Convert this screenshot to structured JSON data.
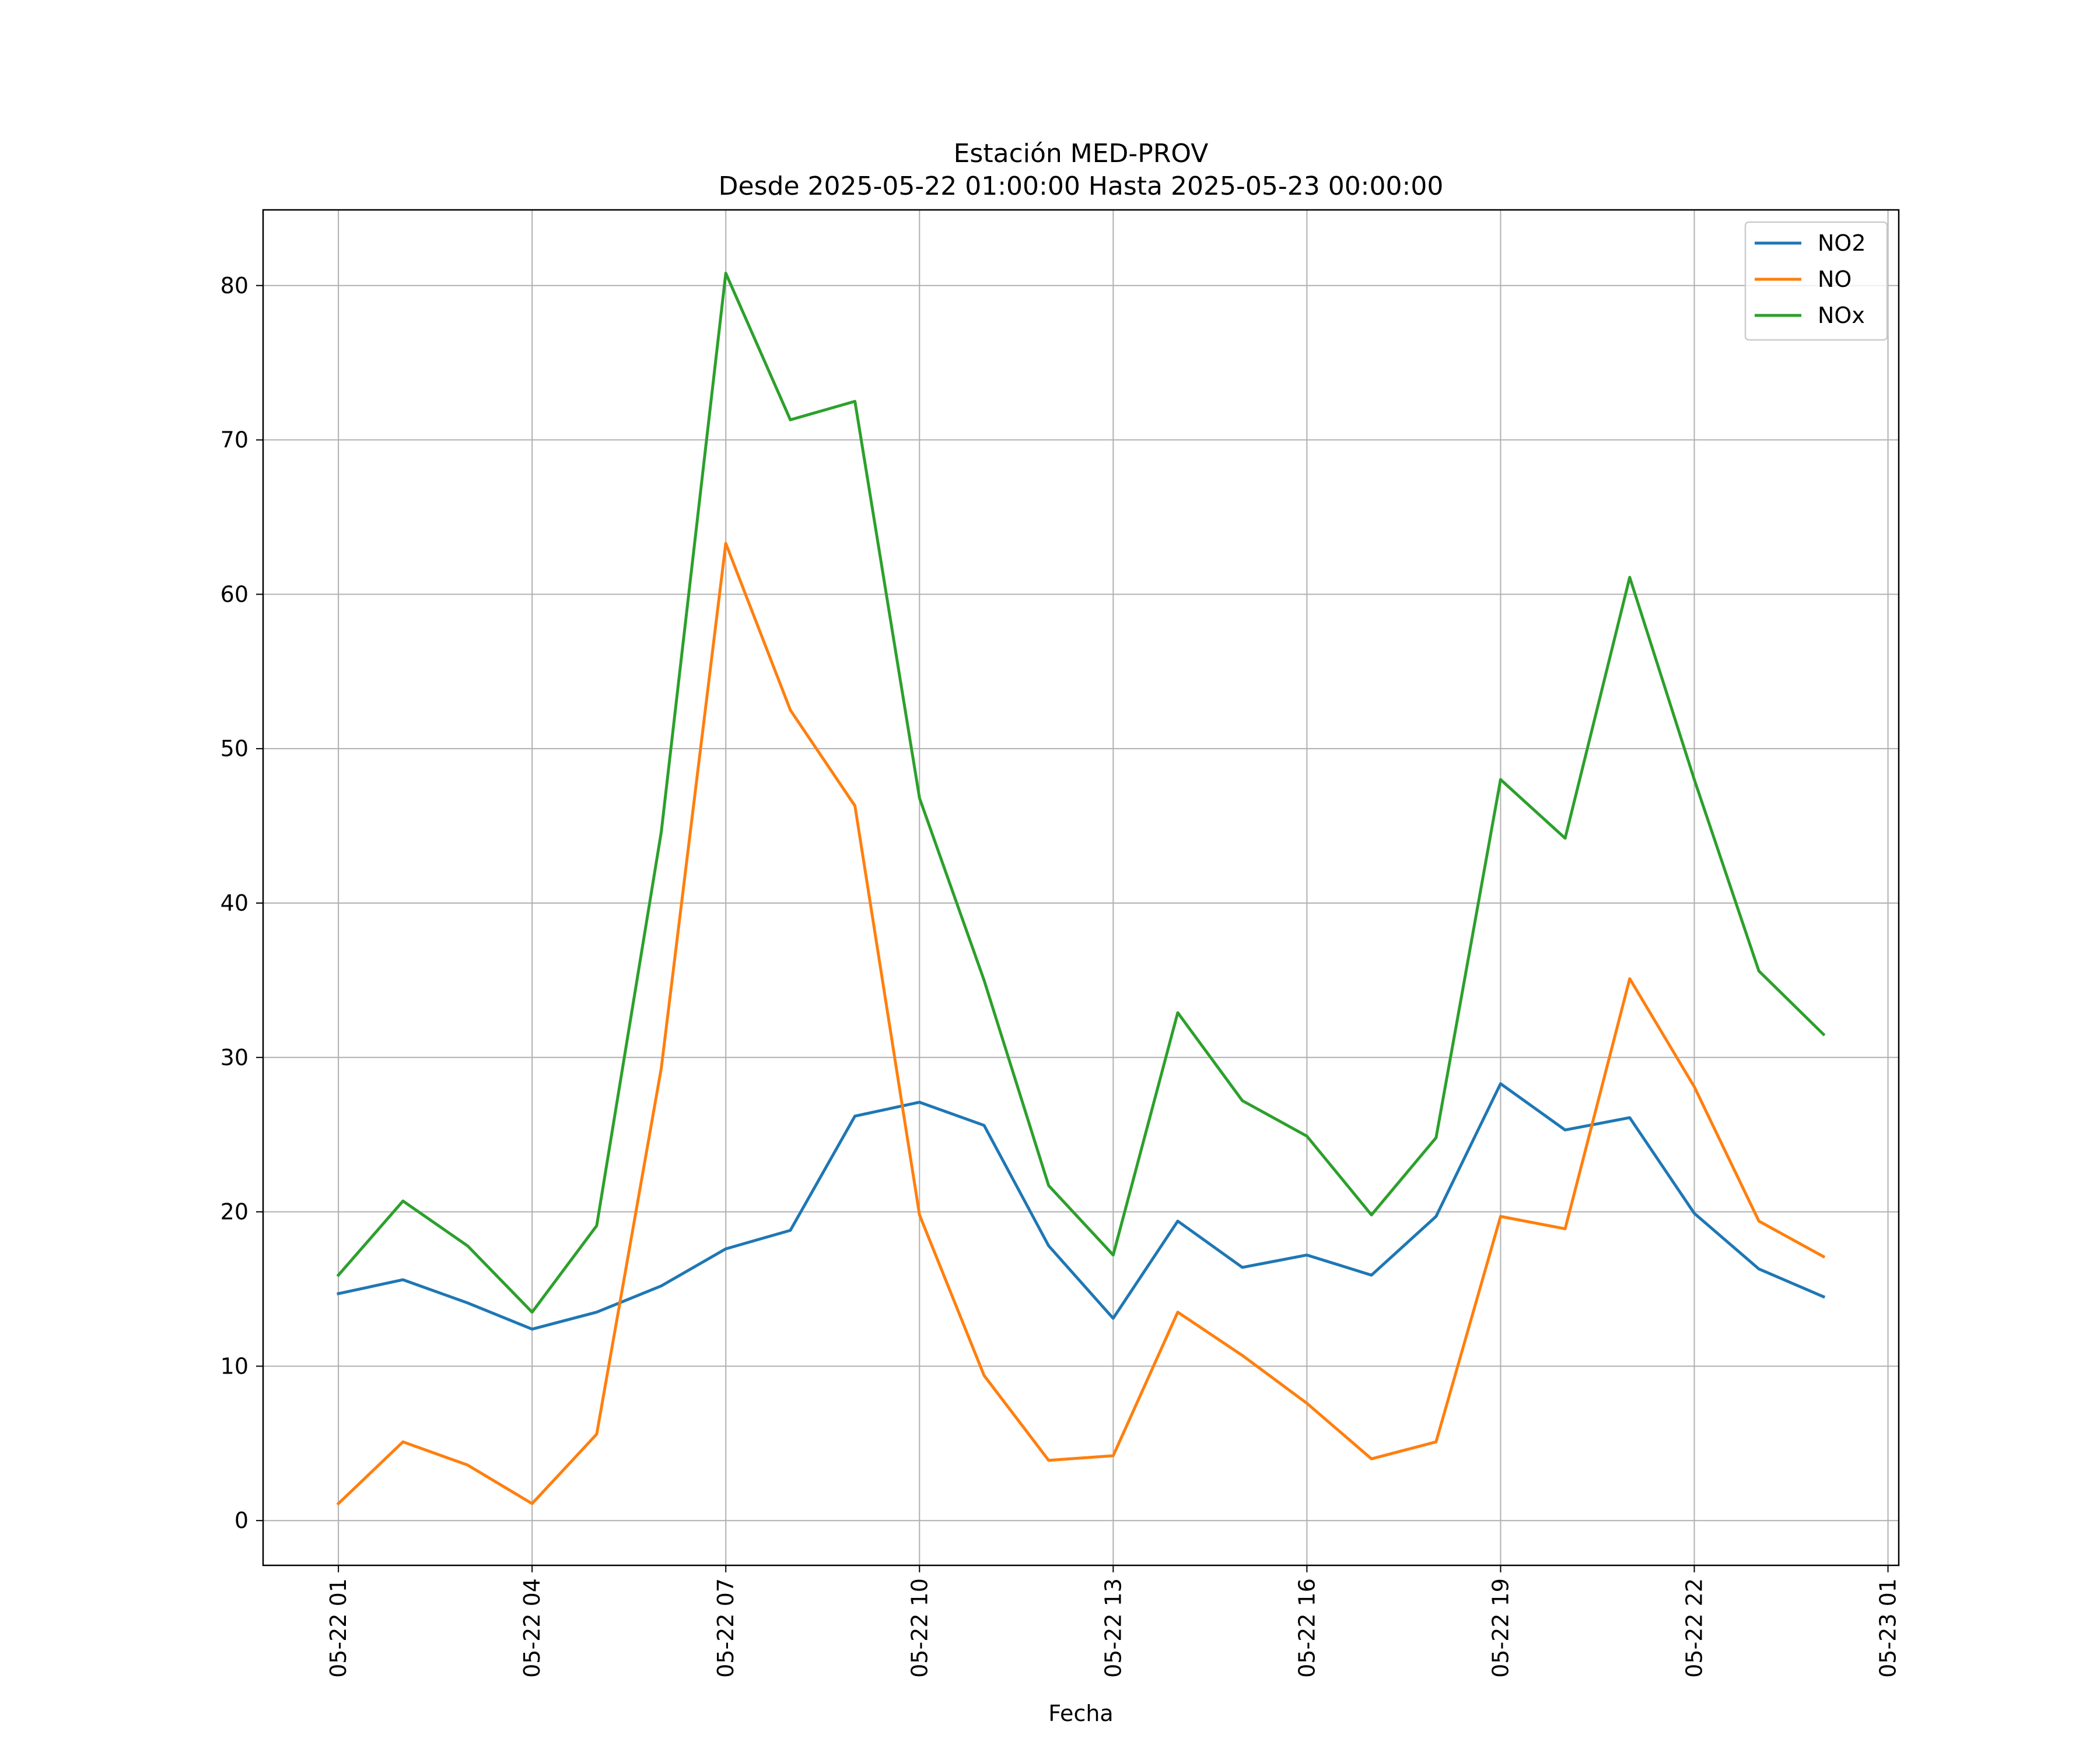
{
  "chart_data": {
    "type": "line",
    "title": "Estación MED-PROV",
    "subtitle": "Desde 2025-05-22 01:00:00 Hasta 2025-05-23 00:00:00",
    "xlabel": "Fecha",
    "ylabel": "",
    "x": [
      "2025-05-22 01:00",
      "2025-05-22 02:00",
      "2025-05-22 03:00",
      "2025-05-22 04:00",
      "2025-05-22 05:00",
      "2025-05-22 06:00",
      "2025-05-22 07:00",
      "2025-05-22 08:00",
      "2025-05-22 09:00",
      "2025-05-22 10:00",
      "2025-05-22 11:00",
      "2025-05-22 12:00",
      "2025-05-22 13:00",
      "2025-05-22 14:00",
      "2025-05-22 15:00",
      "2025-05-22 16:00",
      "2025-05-22 17:00",
      "2025-05-22 18:00",
      "2025-05-22 19:00",
      "2025-05-22 20:00",
      "2025-05-22 21:00",
      "2025-05-22 22:00",
      "2025-05-22 23:00",
      "2025-05-23 00:00"
    ],
    "xticks": [
      "05-22 01",
      "05-22 04",
      "05-22 07",
      "05-22 10",
      "05-22 13",
      "05-22 16",
      "05-22 19",
      "05-22 22",
      "05-23 01"
    ],
    "xlim": [
      "2025-05-21 23:50",
      "2025-05-23 01:10"
    ],
    "yticks": [
      0,
      10,
      20,
      30,
      40,
      50,
      60,
      70,
      80
    ],
    "ylim": [
      -2.9,
      84.9
    ],
    "grid": true,
    "legend_position": "top-right",
    "series": [
      {
        "name": "NO2",
        "color": "#1f77b4",
        "values": [
          14.7,
          15.6,
          14.1,
          12.4,
          13.5,
          15.2,
          17.6,
          18.8,
          26.2,
          27.1,
          25.6,
          17.8,
          13.1,
          19.4,
          16.4,
          17.2,
          15.9,
          19.7,
          28.3,
          25.3,
          26.1,
          19.9,
          16.3,
          14.5
        ]
      },
      {
        "name": "NO",
        "color": "#ff7f0e",
        "values": [
          1.1,
          5.1,
          3.6,
          1.1,
          5.6,
          29.3,
          63.3,
          52.5,
          46.3,
          19.8,
          9.4,
          3.9,
          4.2,
          13.5,
          10.7,
          7.6,
          4.0,
          5.1,
          19.7,
          18.9,
          35.1,
          28.1,
          19.4,
          17.1
        ]
      },
      {
        "name": "NOx",
        "color": "#2ca02c",
        "values": [
          15.9,
          20.7,
          17.8,
          13.5,
          19.1,
          44.6,
          80.8,
          71.3,
          72.5,
          46.8,
          35.0,
          21.7,
          17.2,
          32.9,
          27.2,
          24.9,
          19.8,
          24.8,
          48.0,
          44.2,
          61.1,
          48.0,
          35.6,
          31.5
        ]
      }
    ]
  }
}
